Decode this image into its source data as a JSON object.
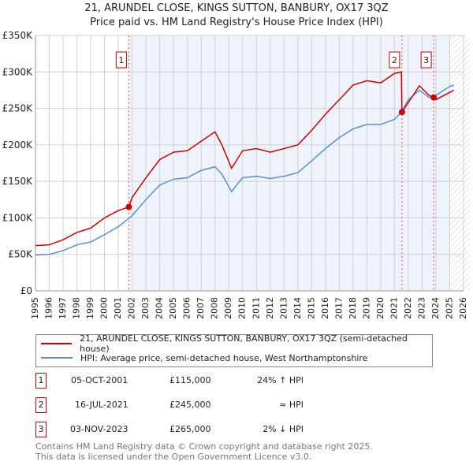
{
  "chart_data": {
    "type": "line",
    "title": "21, ARUNDEL CLOSE, KINGS SUTTON, BANBURY, OX17 3QZ",
    "subtitle": "Price paid vs. HM Land Registry's House Price Index (HPI)",
    "xlim": [
      1995,
      2026
    ],
    "ylim": [
      0,
      350000
    ],
    "yticks": [
      0,
      50000,
      100000,
      150000,
      200000,
      250000,
      300000,
      350000
    ],
    "ytick_labels": [
      "£0",
      "£50K",
      "£100K",
      "£150K",
      "£200K",
      "£250K",
      "£300K",
      "£350K"
    ],
    "xticks": [
      1995,
      1996,
      1997,
      1998,
      1999,
      2000,
      2001,
      2002,
      2003,
      2004,
      2005,
      2006,
      2007,
      2008,
      2009,
      2010,
      2011,
      2012,
      2013,
      2014,
      2015,
      2016,
      2017,
      2018,
      2019,
      2020,
      2021,
      2022,
      2023,
      2024,
      2025,
      2026
    ],
    "grid": true,
    "series": [
      {
        "name": "21, ARUNDEL CLOSE, KINGS SUTTON, BANBURY, OX17 3QZ (semi-detached house)",
        "color": "#cc0000",
        "x": [
          1995,
          1996,
          1997,
          1998,
          1999,
          2000,
          2001,
          2001.76,
          2002,
          2003,
          2004,
          2005,
          2006,
          2007,
          2008,
          2008.5,
          2009.2,
          2010,
          2011,
          2012,
          2013,
          2014,
          2015,
          2016,
          2017,
          2018,
          2019,
          2020,
          2021,
          2021.5,
          2021.54,
          2022,
          2022.8,
          2023.5,
          2023.84,
          2024,
          2025,
          2025.3
        ],
        "y": [
          62000,
          63000,
          70000,
          80000,
          86000,
          100000,
          110000,
          115000,
          128000,
          155000,
          180000,
          190000,
          192000,
          205000,
          218000,
          200000,
          168000,
          192000,
          195000,
          190000,
          195000,
          200000,
          220000,
          242000,
          262000,
          282000,
          288000,
          285000,
          298000,
          300000,
          245000,
          258000,
          281000,
          268000,
          265000,
          262000,
          272000,
          275000
        ]
      },
      {
        "name": "HPI: Average price, semi-detached house, West Northamptonshire",
        "color": "#5b8ed6",
        "x": [
          1995,
          1996,
          1997,
          1998,
          1999,
          2000,
          2001,
          2002,
          2003,
          2004,
          2005,
          2006,
          2007,
          2008,
          2008.5,
          2009.2,
          2010,
          2011,
          2012,
          2013,
          2014,
          2015,
          2016,
          2017,
          2018,
          2019,
          2020,
          2021,
          2021.5,
          2022,
          2022.8,
          2023.5,
          2024,
          2025,
          2025.3
        ],
        "y": [
          49000,
          50000,
          55000,
          63000,
          67000,
          77000,
          88000,
          103000,
          125000,
          145000,
          153000,
          155000,
          165000,
          170000,
          160000,
          136000,
          155000,
          157000,
          154000,
          157000,
          162000,
          178000,
          195000,
          210000,
          222000,
          228000,
          228000,
          235000,
          245000,
          262000,
          275000,
          265000,
          268000,
          280000,
          282000
        ]
      }
    ],
    "sales": [
      {
        "label": "1",
        "x": 2001.76,
        "y": 115000,
        "date": "05-OCT-2001",
        "price": "£115,000",
        "hpi": "24% ↑ HPI"
      },
      {
        "label": "2",
        "x": 2021.54,
        "y": 245000,
        "date": "16-JUL-2021",
        "price": "£245,000",
        "hpi": "≈ HPI"
      },
      {
        "label": "3",
        "x": 2023.84,
        "y": 265000,
        "date": "03-NOV-2023",
        "price": "£265,000",
        "hpi": "2% ↓ HPI"
      }
    ],
    "forecast_start": 2025.0
  },
  "footer": [
    "Contains HM Land Registry data © Crown copyright and database right 2025.",
    "This data is licensed under the Open Government Licence v3.0."
  ]
}
